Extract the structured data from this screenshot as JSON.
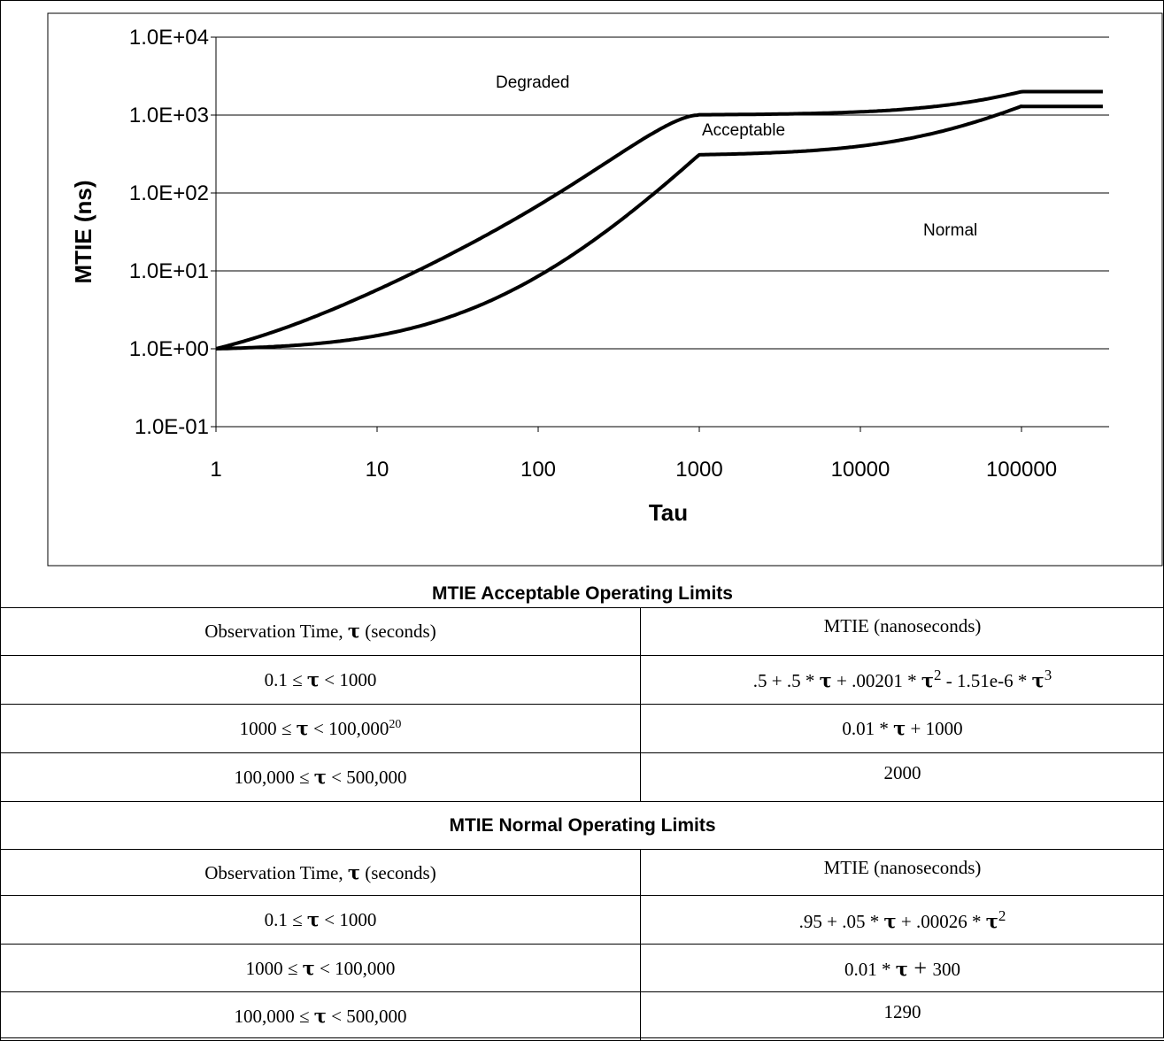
{
  "chart_data": {
    "type": "line",
    "x_scale": "log",
    "y_scale": "log",
    "xlabel": "Tau",
    "ylabel": "MTIE (ns)",
    "xlim": [
      1,
      320000
    ],
    "ylim": [
      0.1,
      10000
    ],
    "x_ticks": [
      "1",
      "10",
      "100",
      "1000",
      "10000",
      "100000"
    ],
    "y_ticks": [
      "1.0E-01",
      "1.0E+00",
      "1.0E+01",
      "1.0E+02",
      "1.0E+03",
      "1.0E+04"
    ],
    "grid": "horizontal",
    "region_labels": [
      "Degraded",
      "Acceptable",
      "Normal"
    ],
    "series": [
      {
        "x": [
          1,
          2,
          5,
          10,
          20,
          50,
          100,
          200,
          500,
          1000,
          10000,
          50000,
          100000,
          320000
        ],
        "values": [
          1.0,
          1.5,
          3.1,
          5.7,
          11.3,
          30.3,
          69.1,
          169.3,
          815.8,
          1000,
          1100,
          1500,
          2000,
          2000
        ]
      },
      {
        "x": [
          1,
          2,
          5,
          10,
          20,
          50,
          100,
          200,
          500,
          1000,
          10000,
          50000,
          100000,
          320000
        ],
        "values": [
          1.0,
          1.05,
          1.2,
          1.5,
          2.0,
          4.1,
          8.5,
          20.3,
          90.0,
          300,
          400,
          800,
          1290,
          1290
        ]
      }
    ]
  },
  "tables": [
    {
      "title": "MTIE Acceptable Operating Limits",
      "col1": "Observation Time, τ (seconds)",
      "col2": "MTIE (nanoseconds)",
      "rows": [
        {
          "range": [
            "0.1 ≤ ",
            " < 1000"
          ],
          "mtie": [
            ".5 + .5 * ",
            " + .00201 * ",
            "2",
            " - 1.51e-6 * ",
            "3"
          ]
        },
        {
          "range": [
            "1000 ≤ ",
            " < 100,000",
            "20"
          ],
          "mtie": [
            "0.01 * ",
            " + 1000"
          ]
        },
        {
          "range": [
            "100,000 ≤ ",
            " < 500,000"
          ],
          "mtie": [
            "2000"
          ]
        }
      ]
    },
    {
      "title": "MTIE Normal Operating Limits",
      "col1": "Observation Time, τ (seconds)",
      "col2": "MTIE (nanoseconds)",
      "rows": [
        {
          "range": [
            "0.1 ≤ ",
            " < 1000"
          ],
          "mtie": [
            ".95 + .05 * ",
            " + .00026 * ",
            "2"
          ]
        },
        {
          "range": [
            "1000 ≤ ",
            " < 100,000"
          ],
          "mtie": [
            "0.01 * ",
            " + ",
            "300"
          ]
        },
        {
          "range": [
            "100,000 ≤ ",
            " < 500,000"
          ],
          "mtie": [
            "1290"
          ]
        }
      ]
    }
  ],
  "tau_symbol": "τ"
}
